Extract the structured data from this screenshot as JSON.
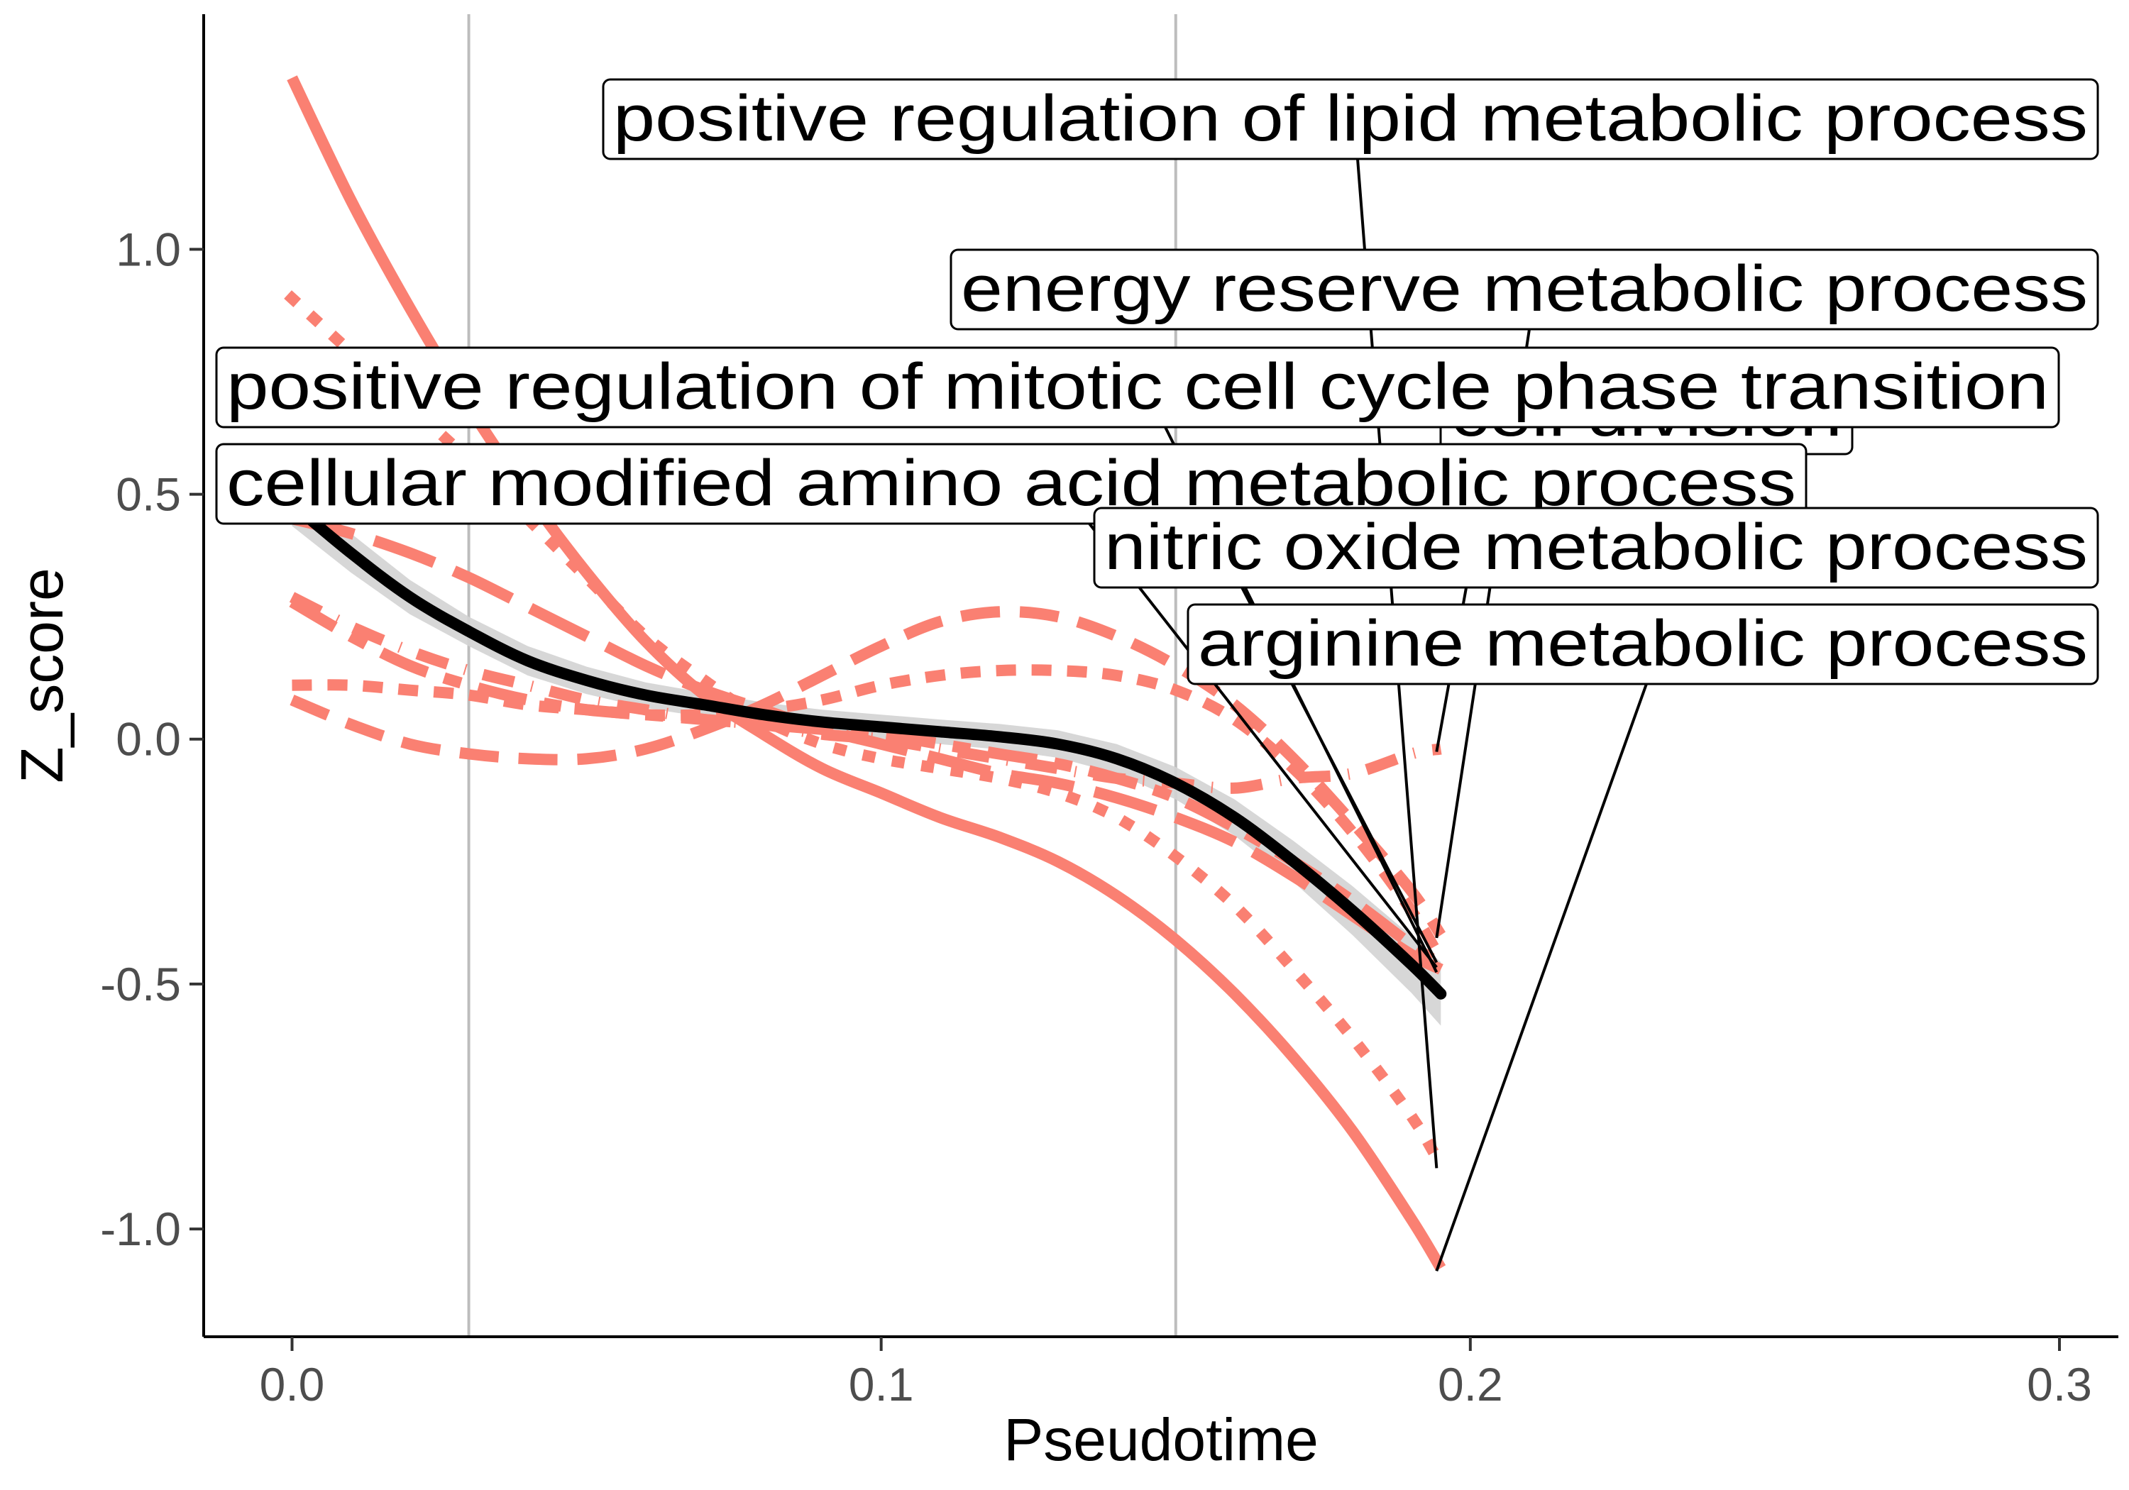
{
  "chart_data": {
    "type": "line",
    "title": "",
    "xlabel": "Pseudotime",
    "ylabel": "Z_score",
    "xlim": [
      -0.015,
      0.31
    ],
    "ylim": [
      -1.22,
      1.48
    ],
    "x_ticks": [
      0.0,
      0.1,
      0.2,
      0.3
    ],
    "x_tick_labels": [
      "0.0",
      "0.1",
      "0.2",
      "0.3"
    ],
    "y_ticks": [
      -1.0,
      -0.5,
      0.0,
      0.5,
      1.0
    ],
    "y_tick_labels": [
      "-1.0",
      "-0.5",
      "0.0",
      "0.5",
      "1.0"
    ],
    "vlines": [
      0.03,
      0.15
    ],
    "grid": false,
    "legend": "none",
    "series_color": "#fa8072",
    "trend_color": "#000000",
    "band_color": "#d3d3d3",
    "x": [
      0.0,
      0.01,
      0.02,
      0.03,
      0.04,
      0.05,
      0.06,
      0.07,
      0.08,
      0.09,
      0.1,
      0.11,
      0.12,
      0.13,
      0.14,
      0.15,
      0.16,
      0.17,
      0.18,
      0.19,
      0.195
    ],
    "series": [
      {
        "name": "positive regulation of lipid metabolic process",
        "dash": "dotted",
        "values": [
          0.9,
          0.79,
          0.68,
          0.57,
          0.45,
          0.33,
          0.21,
          0.12,
          0.04,
          -0.01,
          -0.04,
          -0.06,
          -0.08,
          -0.11,
          -0.16,
          -0.24,
          -0.34,
          -0.47,
          -0.61,
          -0.77,
          -0.87
        ]
      },
      {
        "name": "energy reserve metabolic process",
        "dash": "dashed",
        "values": [
          0.08,
          0.03,
          -0.01,
          -0.03,
          -0.04,
          -0.04,
          -0.02,
          0.02,
          0.07,
          0.13,
          0.19,
          0.24,
          0.26,
          0.25,
          0.21,
          0.15,
          0.07,
          -0.04,
          -0.17,
          -0.31,
          -0.4
        ]
      },
      {
        "name": "cell division",
        "dash": "dashdot",
        "values": [
          0.29,
          0.23,
          0.18,
          0.14,
          0.11,
          0.08,
          0.06,
          0.04,
          0.03,
          0.01,
          0.0,
          -0.02,
          -0.04,
          -0.06,
          -0.08,
          -0.09,
          -0.1,
          -0.08,
          -0.07,
          -0.03,
          -0.02
        ]
      },
      {
        "name": "positive regulation of mitotic cell cycle phase transition",
        "dash": "longdash",
        "values": [
          0.45,
          0.42,
          0.38,
          0.33,
          0.27,
          0.21,
          0.15,
          0.1,
          0.06,
          0.02,
          -0.01,
          -0.04,
          -0.07,
          -0.09,
          -0.12,
          -0.16,
          -0.21,
          -0.28,
          -0.36,
          -0.44,
          -0.47
        ]
      },
      {
        "name": "cellular modified amino acid metabolic process",
        "dash": "twodash",
        "values": [
          0.28,
          0.21,
          0.15,
          0.11,
          0.08,
          0.06,
          0.05,
          0.04,
          0.03,
          0.02,
          0.01,
          -0.01,
          -0.03,
          -0.05,
          -0.08,
          -0.12,
          -0.18,
          -0.25,
          -0.33,
          -0.42,
          -0.46
        ]
      },
      {
        "name": "nitric oxide metabolic process",
        "dash": "shortdash",
        "values": [
          0.11,
          0.11,
          0.1,
          0.09,
          0.07,
          0.06,
          0.05,
          0.05,
          0.06,
          0.08,
          0.11,
          0.13,
          0.14,
          0.14,
          0.13,
          0.1,
          0.04,
          -0.06,
          -0.19,
          -0.35,
          -0.45
        ]
      },
      {
        "name": "arginine metabolic process",
        "dash": "solid",
        "values": [
          1.35,
          1.1,
          0.88,
          0.68,
          0.5,
          0.34,
          0.2,
          0.09,
          0.01,
          -0.06,
          -0.11,
          -0.16,
          -0.2,
          -0.25,
          -0.32,
          -0.41,
          -0.52,
          -0.65,
          -0.8,
          -0.98,
          -1.08
        ]
      }
    ],
    "trend": {
      "values": [
        0.48,
        0.38,
        0.29,
        0.22,
        0.16,
        0.12,
        0.09,
        0.07,
        0.05,
        0.035,
        0.025,
        0.015,
        0.005,
        -0.01,
        -0.04,
        -0.09,
        -0.16,
        -0.25,
        -0.35,
        -0.46,
        -0.52
      ],
      "band": [
        0.045,
        0.04,
        0.035,
        0.03,
        0.03,
        0.028,
        0.026,
        0.025,
        0.025,
        0.025,
        0.025,
        0.025,
        0.026,
        0.028,
        0.03,
        0.033,
        0.037,
        0.042,
        0.05,
        0.058,
        0.065
      ]
    },
    "annotations": [
      {
        "text": "positive regulation of lipid metabolic process",
        "target_x": 0.195,
        "target_y": -0.87
      },
      {
        "text": "energy reserve metabolic process",
        "target_x": 0.195,
        "target_y": -0.4
      },
      {
        "text": "positive regulation of mitotic cell cycle phase transition",
        "target_x": 0.195,
        "target_y": -0.47
      },
      {
        "text": "cell division",
        "target_x": 0.195,
        "target_y": -0.02
      },
      {
        "text": "cellular modified amino acid metabolic process",
        "target_x": 0.195,
        "target_y": -0.46
      },
      {
        "text": "nitric oxide metabolic process",
        "target_x": 0.195,
        "target_y": -0.45
      },
      {
        "text": "arginine metabolic process",
        "target_x": 0.195,
        "target_y": -1.08
      }
    ]
  }
}
